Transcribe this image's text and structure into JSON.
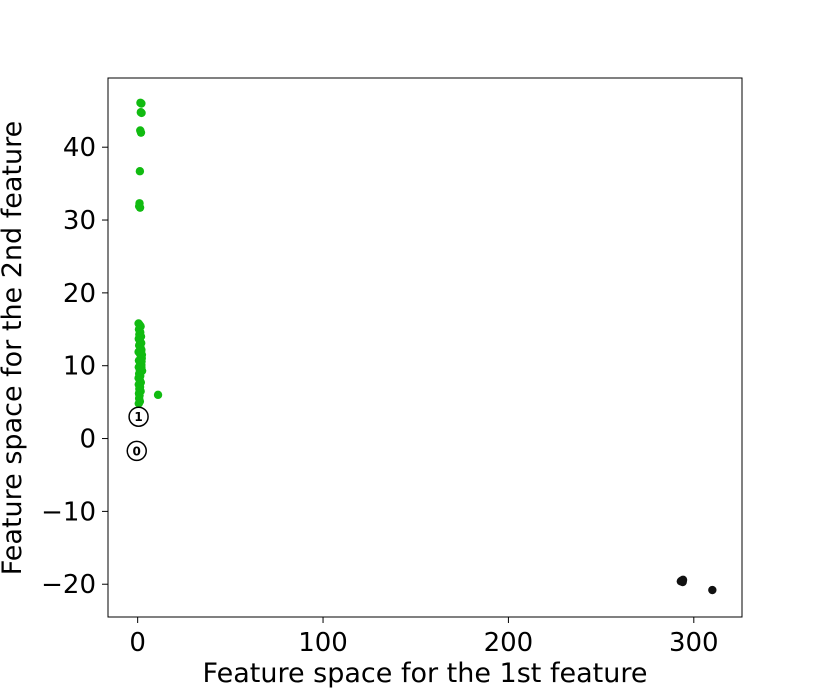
{
  "chart_data": {
    "type": "scatter",
    "xlabel": "Feature space for the 1st feature",
    "ylabel": "Feature space for the 2nd feature",
    "xlim": [
      -16,
      326
    ],
    "ylim": [
      -24.5,
      49.5
    ],
    "xticks": [
      0,
      100,
      200,
      300
    ],
    "yticks": [
      -20,
      -10,
      0,
      10,
      20,
      30,
      40
    ],
    "xtick_labels": [
      "0",
      "100",
      "200",
      "300"
    ],
    "ytick_labels": [
      "−20",
      "−10",
      "0",
      "10",
      "20",
      "30",
      "40"
    ],
    "grid": false,
    "legend": "none",
    "series": [
      {
        "color": "#11bb11",
        "points": [
          [
            1.5,
            46.1
          ],
          [
            2.0,
            46.0
          ],
          [
            1.7,
            44.8
          ],
          [
            2.1,
            44.7
          ],
          [
            1.4,
            42.3
          ],
          [
            1.8,
            42.0
          ],
          [
            1.2,
            36.7
          ],
          [
            1.0,
            32.3
          ],
          [
            0.8,
            31.9
          ],
          [
            1.3,
            31.7
          ],
          [
            0.5,
            15.8
          ],
          [
            1.1,
            15.6
          ],
          [
            1.6,
            15.4
          ],
          [
            0.7,
            15.0
          ],
          [
            1.4,
            14.6
          ],
          [
            0.9,
            14.3
          ],
          [
            1.8,
            14.0
          ],
          [
            0.6,
            13.7
          ],
          [
            1.2,
            13.4
          ],
          [
            1.9,
            13.1
          ],
          [
            0.8,
            12.8
          ],
          [
            1.5,
            12.5
          ],
          [
            2.0,
            12.2
          ],
          [
            0.5,
            11.9
          ],
          [
            1.3,
            11.6
          ],
          [
            1.8,
            11.3
          ],
          [
            2.2,
            11.0
          ],
          [
            0.7,
            10.7
          ],
          [
            1.5,
            10.4
          ],
          [
            2.0,
            10.1
          ],
          [
            0.6,
            9.8
          ],
          [
            1.1,
            9.5
          ],
          [
            1.9,
            9.2
          ],
          [
            0.8,
            8.9
          ],
          [
            1.4,
            8.6
          ],
          [
            0.5,
            8.3
          ],
          [
            1.2,
            8.0
          ],
          [
            1.7,
            7.7
          ],
          [
            0.6,
            7.4
          ],
          [
            1.3,
            7.1
          ],
          [
            0.9,
            6.8
          ],
          [
            1.6,
            6.5
          ],
          [
            0.7,
            6.2
          ],
          [
            1.0,
            5.9
          ],
          [
            0.8,
            5.5
          ],
          [
            1.2,
            5.1
          ],
          [
            0.6,
            4.8
          ],
          [
            2.3,
            11.5
          ],
          [
            2.1,
            10.6
          ],
          [
            1.9,
            12.0
          ],
          [
            2.4,
            9.3
          ],
          [
            2.0,
            9.8
          ],
          [
            11.0,
            6.0
          ]
        ]
      },
      {
        "color": "#111111",
        "points": [
          [
            293.0,
            -19.6
          ],
          [
            293.5,
            -19.5
          ],
          [
            294.0,
            -19.7
          ],
          [
            294.2,
            -19.4
          ],
          [
            310.0,
            -20.8
          ]
        ]
      }
    ],
    "annotations": [
      {
        "text": "1",
        "x": 0.5,
        "y": 3.0
      },
      {
        "text": "0",
        "x": -0.5,
        "y": -1.7
      }
    ]
  }
}
